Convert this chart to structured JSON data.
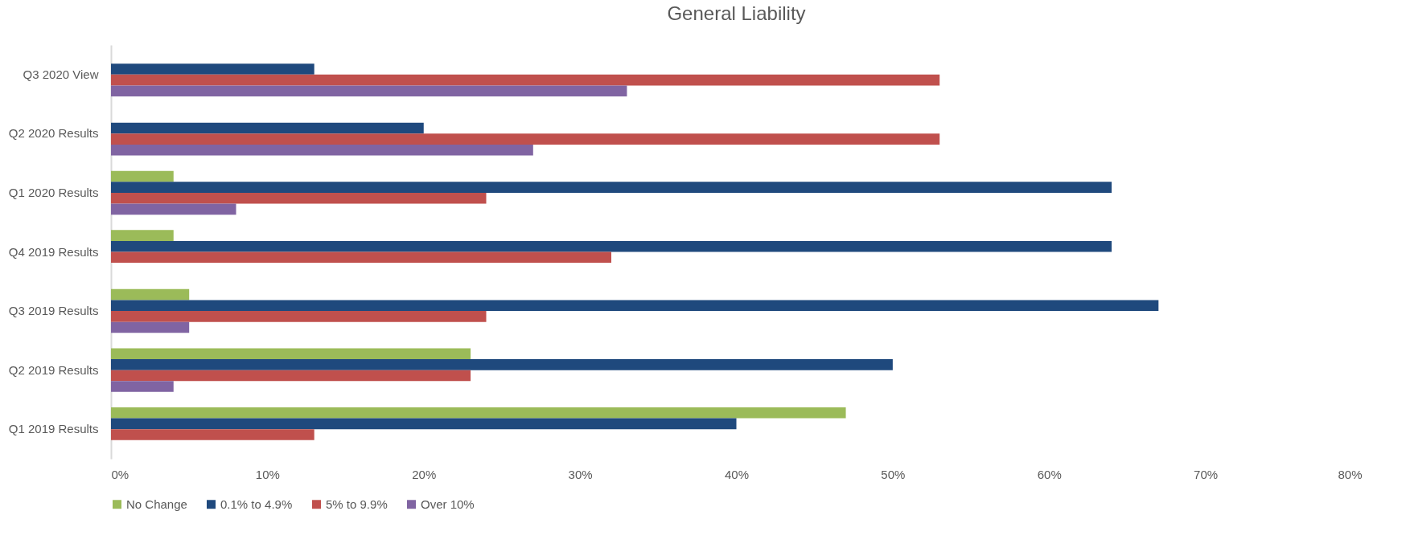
{
  "chart_data": {
    "type": "bar",
    "orientation": "horizontal",
    "title": "General Liability",
    "categories": [
      "Q3 2020 View",
      "Q2 2020 Results",
      "Q1 2020 Results",
      "Q4 2019 Results",
      "Q3 2019 Results",
      "Q2 2019 Results",
      "Q1 2019 Results"
    ],
    "series": [
      {
        "name": "No Change",
        "color": "#9bbb59",
        "values": [
          null,
          null,
          4,
          4,
          5,
          23,
          47
        ]
      },
      {
        "name": "0.1% to 4.9%",
        "color": "#1f497d",
        "values": [
          13,
          20,
          64,
          64,
          67,
          50,
          40
        ]
      },
      {
        "name": "5% to 9.9%",
        "color": "#c0504d",
        "values": [
          53,
          53,
          24,
          32,
          24,
          23,
          13
        ]
      },
      {
        "name": "Over 10%",
        "color": "#8064a2",
        "values": [
          33,
          27,
          8,
          null,
          5,
          4,
          null
        ]
      }
    ],
    "xlim": [
      0,
      80
    ],
    "xticks": [
      {
        "value": 0,
        "label": "0%"
      },
      {
        "value": 10,
        "label": "10%"
      },
      {
        "value": 20,
        "label": "20%"
      },
      {
        "value": 30,
        "label": "30%"
      },
      {
        "value": 40,
        "label": "40%"
      },
      {
        "value": 50,
        "label": "50%"
      },
      {
        "value": 60,
        "label": "60%"
      },
      {
        "value": 70,
        "label": "70%"
      },
      {
        "value": 80,
        "label": "80%"
      }
    ],
    "grid": false,
    "legend": "bottom"
  }
}
